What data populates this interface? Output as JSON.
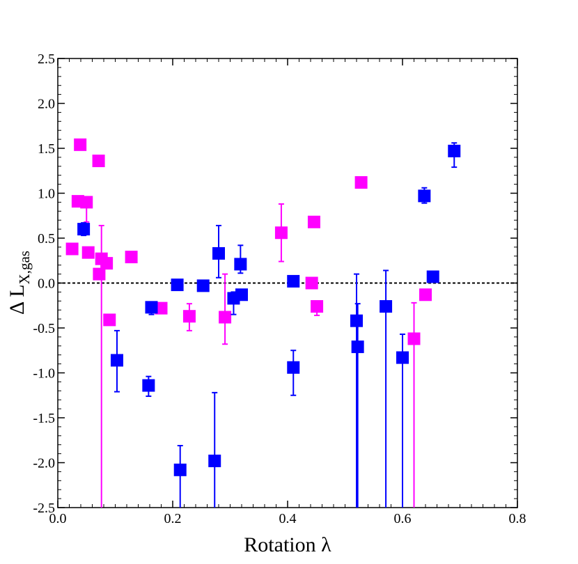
{
  "chart_data": {
    "type": "scatter",
    "xlabel": "Rotation λ",
    "ylabel": {
      "main": "Δ L",
      "sub": "X,gas"
    },
    "xlim": [
      0.0,
      0.8
    ],
    "ylim": [
      -2.5,
      2.5
    ],
    "x_ticks": [
      "0.0",
      "0.2",
      "0.4",
      "0.6",
      "0.8"
    ],
    "y_ticks": [
      "-2.5",
      "-2.0",
      "-1.5",
      "-1.0",
      "-0.5",
      "0.0",
      "0.5",
      "1.0",
      "1.5",
      "2.0",
      "2.5"
    ],
    "reference_line": {
      "y": 0.0,
      "style": "dashed"
    },
    "grid": false,
    "series": [
      {
        "color": "#ff00ff",
        "points": [
          {
            "x": 0.025,
            "y": 0.38
          },
          {
            "x": 0.035,
            "y": 0.91
          },
          {
            "x": 0.039,
            "y": 1.54
          },
          {
            "x": 0.05,
            "y": 0.9,
            "err_low": 0.22,
            "err_high": 0.0
          },
          {
            "x": 0.053,
            "y": 0.34
          },
          {
            "x": 0.071,
            "y": 1.36
          },
          {
            "x": 0.072,
            "y": 0.1
          },
          {
            "x": 0.076,
            "y": 0.27,
            "err_low": 2.8,
            "err_high": 0.37
          },
          {
            "x": 0.085,
            "y": 0.22
          },
          {
            "x": 0.09,
            "y": -0.41
          },
          {
            "x": 0.128,
            "y": 0.29
          },
          {
            "x": 0.18,
            "y": -0.28
          },
          {
            "x": 0.229,
            "y": -0.37,
            "err_low": 0.16,
            "err_high": 0.14
          },
          {
            "x": 0.291,
            "y": -0.38,
            "err_low": 0.3,
            "err_high": 0.48
          },
          {
            "x": 0.389,
            "y": 0.56,
            "err_low": 0.32,
            "err_high": 0.32
          },
          {
            "x": 0.442,
            "y": 0.0
          },
          {
            "x": 0.446,
            "y": 0.68
          },
          {
            "x": 0.451,
            "y": -0.26,
            "err_low": 0.1,
            "err_high": 0.05
          },
          {
            "x": 0.528,
            "y": 1.12
          },
          {
            "x": 0.62,
            "y": -0.62,
            "err_low": 1.9,
            "err_high": 0.4
          },
          {
            "x": 0.64,
            "y": -0.13
          }
        ]
      },
      {
        "color": "#0000ff",
        "points": [
          {
            "x": 0.045,
            "y": 0.6,
            "err_low": 0.07,
            "err_high": 0.07
          },
          {
            "x": 0.103,
            "y": -0.86,
            "err_low": 0.35,
            "err_high": 0.33
          },
          {
            "x": 0.158,
            "y": -1.14,
            "err_low": 0.12,
            "err_high": 0.1
          },
          {
            "x": 0.163,
            "y": -0.27,
            "err_low": 0.08,
            "err_high": 0.06
          },
          {
            "x": 0.208,
            "y": -0.02
          },
          {
            "x": 0.213,
            "y": -2.08,
            "err_low": 0.5,
            "err_high": 0.27
          },
          {
            "x": 0.253,
            "y": -0.03
          },
          {
            "x": 0.273,
            "y": -1.98,
            "err_low": 0.6,
            "err_high": 0.76
          },
          {
            "x": 0.28,
            "y": 0.33,
            "err_low": 0.27,
            "err_high": 0.31
          },
          {
            "x": 0.306,
            "y": -0.17,
            "err_low": 0.18,
            "err_high": 0.07
          },
          {
            "x": 0.318,
            "y": 0.21,
            "err_low": 0.1,
            "err_high": 0.21
          },
          {
            "x": 0.32,
            "y": -0.13
          },
          {
            "x": 0.41,
            "y": 0.02,
            "err_low": 0.02,
            "err_high": 0.05
          },
          {
            "x": 0.41,
            "y": -0.94,
            "err_low": 0.31,
            "err_high": 0.19
          },
          {
            "x": 0.52,
            "y": -0.42,
            "err_low": 2.1,
            "err_high": 0.52
          },
          {
            "x": 0.522,
            "y": -0.71,
            "err_low": 1.8,
            "err_high": 0.48
          },
          {
            "x": 0.571,
            "y": -0.26,
            "err_low": 2.3,
            "err_high": 0.4
          },
          {
            "x": 0.6,
            "y": -0.83,
            "err_low": 1.7,
            "err_high": 0.26
          },
          {
            "x": 0.638,
            "y": 0.97,
            "err_low": 0.08,
            "err_high": 0.09
          },
          {
            "x": 0.653,
            "y": 0.07
          },
          {
            "x": 0.69,
            "y": 1.47,
            "err_low": 0.18,
            "err_high": 0.09
          }
        ]
      }
    ]
  }
}
